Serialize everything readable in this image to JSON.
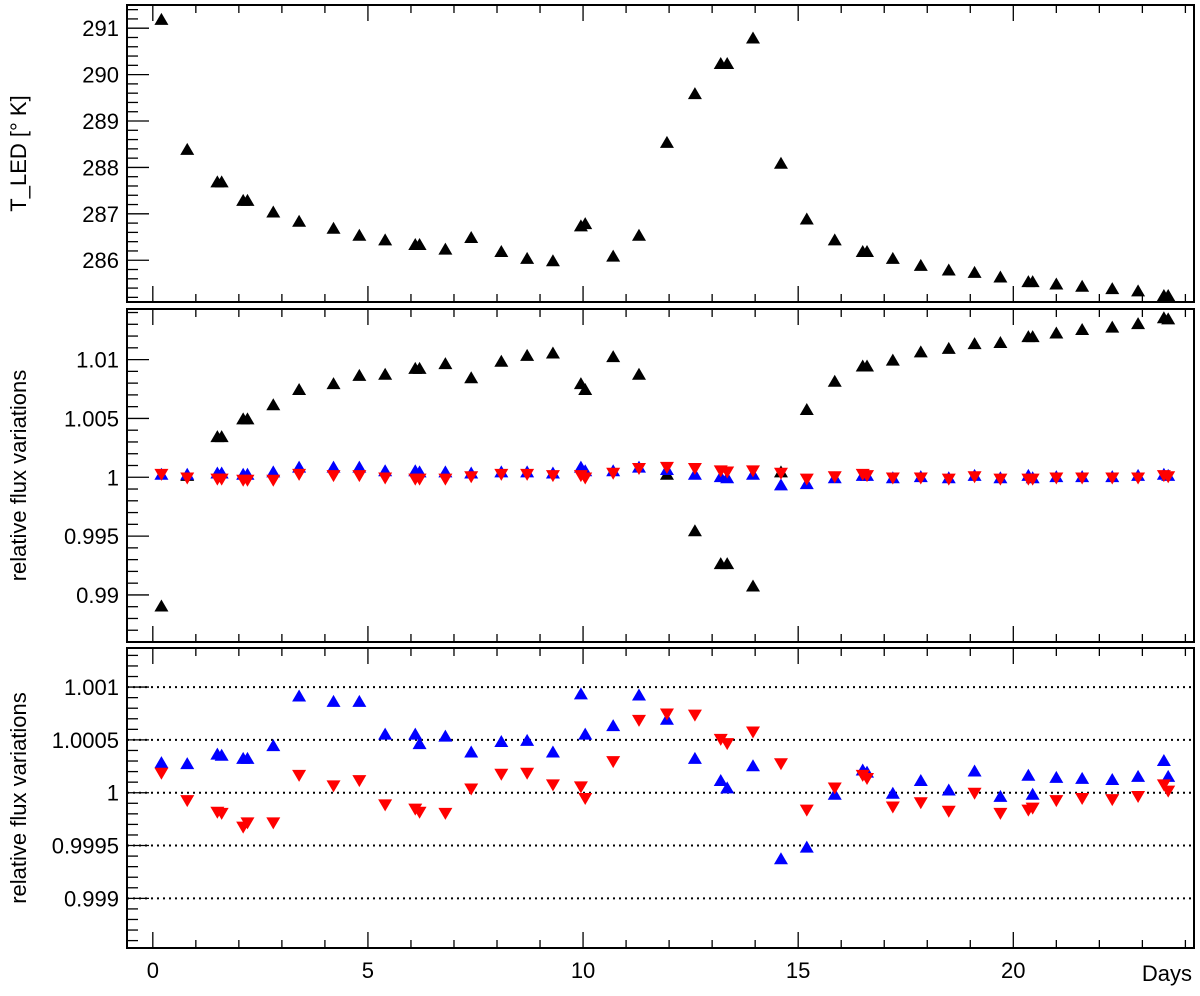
{
  "chart_data": [
    {
      "type": "scatter",
      "ylabel": "T_LED [° K]",
      "xlabel": "",
      "xlim": [
        -0.6,
        24.2
      ],
      "ylim": [
        285.1,
        291.5
      ],
      "yticks": [
        286,
        287,
        288,
        289,
        290,
        291
      ],
      "yticklabels": [
        "286",
        "287",
        "288",
        "289",
        "290",
        "291"
      ],
      "grid": false,
      "series": [
        {
          "marker": "triangle-up",
          "color": "#000000",
          "x": [
            0.2,
            0.8,
            1.5,
            1.6,
            2.1,
            2.2,
            2.8,
            3.4,
            4.2,
            4.8,
            5.4,
            6.1,
            6.2,
            6.8,
            7.4,
            8.1,
            8.7,
            9.3,
            9.95,
            10.05,
            10.7,
            11.3,
            11.95,
            12.6,
            13.2,
            13.35,
            13.95,
            14.6,
            15.2,
            15.85,
            16.5,
            16.6,
            17.2,
            17.85,
            18.5,
            19.1,
            19.7,
            20.35,
            20.45,
            21.0,
            21.6,
            22.3,
            22.9,
            23.5,
            23.6
          ],
          "values": [
            291.2,
            288.4,
            287.7,
            287.7,
            287.3,
            287.3,
            287.05,
            286.85,
            286.7,
            286.55,
            286.45,
            286.35,
            286.35,
            286.25,
            286.5,
            286.2,
            286.05,
            286.0,
            286.75,
            286.8,
            286.1,
            286.55,
            288.55,
            289.6,
            290.25,
            290.25,
            290.8,
            288.1,
            286.9,
            286.45,
            286.2,
            286.2,
            286.05,
            285.9,
            285.8,
            285.75,
            285.65,
            285.55,
            285.55,
            285.5,
            285.45,
            285.4,
            285.35,
            285.25,
            285.25
          ]
        }
      ]
    },
    {
      "type": "scatter",
      "ylabel": "relative flux variations",
      "xlabel": "",
      "xlim": [
        -0.6,
        24.2
      ],
      "ylim": [
        0.986,
        1.0143
      ],
      "yticks": [
        0.99,
        0.995,
        1.0,
        1.005,
        1.01
      ],
      "yticklabels": [
        "0.99",
        "0.995",
        "1",
        "1.005",
        "1.01"
      ],
      "grid": false,
      "series": [
        {
          "marker": "triangle-up",
          "color": "#000000",
          "x": [
            0.2,
            0.8,
            1.5,
            1.6,
            2.1,
            2.2,
            2.8,
            3.4,
            4.2,
            4.8,
            5.4,
            6.1,
            6.2,
            6.8,
            7.4,
            8.1,
            8.7,
            9.3,
            9.95,
            10.05,
            10.7,
            11.3,
            11.95,
            12.6,
            13.2,
            13.35,
            13.95,
            14.6,
            15.2,
            15.85,
            16.5,
            16.6,
            17.2,
            17.85,
            18.5,
            19.1,
            19.7,
            20.35,
            20.45,
            21.0,
            21.6,
            22.3,
            22.9,
            23.5,
            23.6
          ],
          "values": [
            0.9891,
            1.0002,
            1.0035,
            1.0035,
            1.005,
            1.005,
            1.0062,
            1.0075,
            1.008,
            1.0087,
            1.0088,
            1.0093,
            1.0093,
            1.0097,
            1.0085,
            1.0099,
            1.0104,
            1.0106,
            1.008,
            1.0075,
            1.0103,
            1.0088,
            1.0003,
            0.9955,
            0.9927,
            0.9927,
            0.9908,
            1.0005,
            1.0058,
            1.0082,
            1.0095,
            1.0095,
            1.01,
            1.0107,
            1.011,
            1.0114,
            1.0115,
            1.012,
            1.012,
            1.0123,
            1.0126,
            1.0128,
            1.0131,
            1.0136,
            1.0135
          ]
        },
        {
          "marker": "triangle-up",
          "color": "#0000ff",
          "x": [
            0.2,
            0.8,
            1.5,
            1.6,
            2.1,
            2.2,
            2.8,
            3.4,
            4.2,
            4.8,
            5.4,
            6.1,
            6.2,
            6.8,
            7.4,
            8.1,
            8.7,
            9.3,
            9.95,
            10.05,
            10.7,
            11.3,
            11.95,
            12.6,
            13.2,
            13.35,
            13.95,
            14.6,
            15.2,
            15.85,
            16.5,
            16.6,
            17.2,
            17.85,
            18.5,
            19.1,
            19.7,
            20.35,
            20.45,
            21.0,
            21.6,
            22.3,
            22.9,
            23.5,
            23.6
          ],
          "values": [
            1.0003,
            1.0003,
            1.0004,
            1.0004,
            1.0003,
            1.0003,
            1.0005,
            1.0009,
            1.0009,
            1.0009,
            1.0006,
            1.0006,
            1.0005,
            1.0005,
            1.0004,
            1.0005,
            1.0005,
            1.0004,
            1.0009,
            1.0006,
            1.0006,
            1.0009,
            1.0007,
            1.0003,
            1.0001,
            1.0,
            1.0003,
            0.9994,
            0.9995,
            1.0,
            1.0002,
            1.0002,
            1.0,
            1.0001,
            1.0,
            1.0002,
            1.0,
            1.0002,
            1.0,
            1.0001,
            1.0001,
            1.0001,
            1.0002,
            1.0003,
            1.0002
          ]
        },
        {
          "marker": "triangle-down",
          "color": "#ff0000",
          "x": [
            0.2,
            0.8,
            1.5,
            1.6,
            2.1,
            2.2,
            2.8,
            3.4,
            4.2,
            4.8,
            5.4,
            6.1,
            6.2,
            6.8,
            7.4,
            8.1,
            8.7,
            9.3,
            9.95,
            10.05,
            10.7,
            11.3,
            11.95,
            12.6,
            13.2,
            13.35,
            13.95,
            14.6,
            15.2,
            15.85,
            16.5,
            16.6,
            17.2,
            17.85,
            18.5,
            19.1,
            19.7,
            20.35,
            20.45,
            21.0,
            21.6,
            22.3,
            22.9,
            23.5,
            23.6
          ],
          "values": [
            1.0002,
            0.9999,
            0.9998,
            0.9998,
            0.9997,
            0.9997,
            0.9997,
            1.0002,
            1.0001,
            1.0001,
            0.9999,
            0.9998,
            0.9998,
            0.9998,
            1.0,
            1.0002,
            1.0002,
            1.0001,
            1.0001,
            0.9999,
            1.0003,
            1.0007,
            1.0008,
            1.0007,
            1.0005,
            1.0004,
            1.0005,
            1.0003,
            0.9998,
            1.0,
            1.0002,
            1.0001,
            0.9999,
            0.9999,
            0.9998,
            1.0,
            0.9998,
            0.9998,
            0.9998,
            0.9999,
            0.9999,
            0.9999,
            0.9999,
            1.0001,
            1.0
          ]
        }
      ]
    },
    {
      "type": "scatter",
      "ylabel": "relative flux variations",
      "xlabel": "Days",
      "xlim": [
        -0.6,
        24.2
      ],
      "ylim": [
        0.99853,
        1.00137
      ],
      "yticks": [
        0.999,
        0.9995,
        1.0,
        1.0005,
        1.001
      ],
      "yticklabels": [
        "0.999",
        "0.9995",
        "1",
        "1.0005",
        "1.001"
      ],
      "xticks": [
        0,
        5,
        10,
        15,
        20
      ],
      "xticklabels": [
        "0",
        "5",
        "10",
        "15",
        "20"
      ],
      "grid": "horizontal-dotted",
      "series": [
        {
          "marker": "triangle-up",
          "color": "#0000ff",
          "x": [
            0.2,
            0.8,
            1.5,
            1.6,
            2.1,
            2.2,
            2.8,
            3.4,
            4.2,
            4.8,
            5.4,
            6.1,
            6.2,
            6.8,
            7.4,
            8.1,
            8.7,
            9.3,
            9.95,
            10.05,
            10.7,
            11.3,
            11.95,
            12.6,
            13.2,
            13.35,
            13.95,
            14.6,
            15.2,
            15.85,
            16.5,
            16.6,
            17.2,
            17.85,
            18.5,
            19.1,
            19.7,
            20.35,
            20.45,
            21.0,
            21.6,
            22.3,
            22.9,
            23.5,
            23.6
          ],
          "values": [
            1.00029,
            1.00028,
            1.00037,
            1.00036,
            1.00033,
            1.00033,
            1.00045,
            1.00092,
            1.00087,
            1.00087,
            1.00056,
            1.00056,
            1.00047,
            1.00054,
            1.00039,
            1.00049,
            1.0005,
            1.00039,
            1.00094,
            1.00056,
            1.00064,
            1.00093,
            1.0007,
            1.00033,
            1.00012,
            1.00005,
            1.00026,
            0.99938,
            0.99949,
            0.99999,
            1.00022,
            1.0002,
            1.0,
            1.00012,
            1.00003,
            1.00021,
            0.99997,
            1.00017,
            0.99999,
            1.00015,
            1.00014,
            1.00013,
            1.00016,
            1.00031,
            1.00016
          ]
        },
        {
          "marker": "triangle-down",
          "color": "#ff0000",
          "x": [
            0.2,
            0.8,
            1.5,
            1.6,
            2.1,
            2.2,
            2.8,
            3.4,
            4.2,
            4.8,
            5.4,
            6.1,
            6.2,
            6.8,
            7.4,
            8.1,
            8.7,
            9.3,
            9.95,
            10.05,
            10.7,
            11.3,
            11.95,
            12.6,
            13.2,
            13.35,
            13.95,
            14.6,
            15.2,
            15.85,
            16.5,
            16.6,
            17.2,
            17.85,
            18.5,
            19.1,
            19.7,
            20.35,
            20.45,
            21.0,
            21.6,
            22.3,
            22.9,
            23.5,
            23.6
          ],
          "values": [
            1.00018,
            0.99992,
            0.99981,
            0.9998,
            0.99967,
            0.99971,
            0.99971,
            1.00016,
            1.00006,
            1.00011,
            0.99988,
            0.99984,
            0.99981,
            0.9998,
            1.00003,
            1.00017,
            1.00018,
            1.00007,
            1.00005,
            0.99994,
            1.00029,
            1.00068,
            1.00074,
            1.00073,
            1.0005,
            1.00046,
            1.00057,
            1.00027,
            0.99983,
            1.00004,
            1.00016,
            1.00013,
            0.99986,
            0.9999,
            0.99982,
            0.99999,
            0.9998,
            0.99983,
            0.99985,
            0.99992,
            0.99994,
            0.99993,
            0.99996,
            1.00007,
            1.00001
          ]
        }
      ]
    }
  ]
}
